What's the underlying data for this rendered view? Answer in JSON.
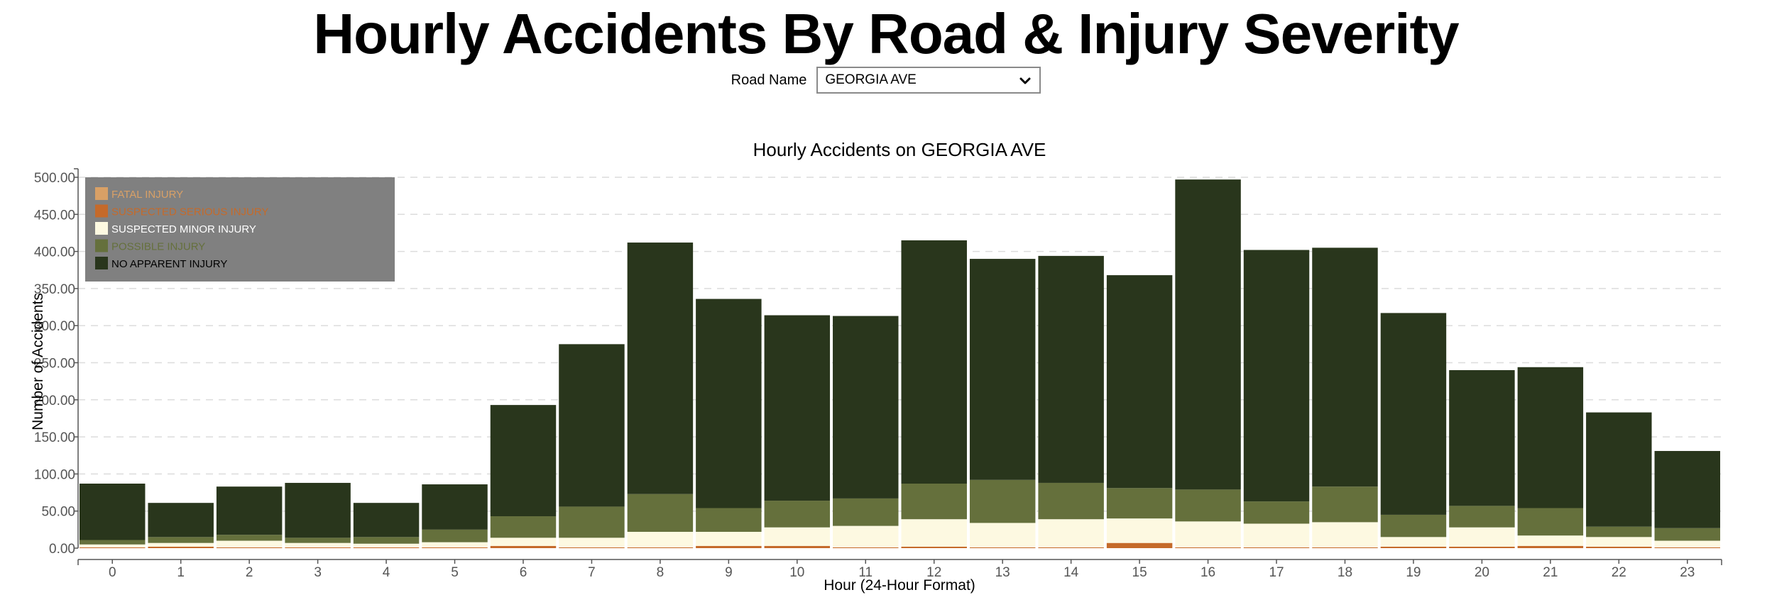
{
  "page": {
    "title": "Hourly Accidents By Road & Injury Severity",
    "road_label": "Road Name",
    "road_selected": "GEORGIA AVE"
  },
  "chart_data": {
    "type": "bar",
    "stacked": true,
    "title": "Hourly Accidents on GEORGIA AVE",
    "xlabel": "Hour (24-Hour Format)",
    "ylabel": "Number of Accidents",
    "ylim": [
      0,
      500
    ],
    "yticks": [
      "0.00",
      "50.00",
      "100.00",
      "150.00",
      "200.00",
      "250.00",
      "300.00",
      "350.00",
      "400.00",
      "450.00",
      "500.00"
    ],
    "grid": true,
    "legend_position": "top-left",
    "categories": [
      "0",
      "1",
      "2",
      "3",
      "4",
      "5",
      "6",
      "7",
      "8",
      "9",
      "10",
      "11",
      "12",
      "13",
      "14",
      "15",
      "16",
      "17",
      "18",
      "19",
      "20",
      "21",
      "22",
      "23"
    ],
    "series": [
      {
        "name": "FATAL INJURY",
        "color": "#d9a066",
        "values": [
          0,
          0,
          0,
          0,
          0,
          0,
          0,
          0,
          0,
          0,
          0,
          0,
          0,
          0,
          0,
          0,
          0,
          0,
          0,
          0,
          0,
          0,
          0,
          0
        ]
      },
      {
        "name": "SUSPECTED SERIOUS INJURY",
        "color": "#c56a2a",
        "values": [
          1,
          2,
          1,
          1,
          1,
          1,
          3,
          1,
          1,
          3,
          3,
          1,
          2,
          1,
          1,
          7,
          1,
          1,
          1,
          2,
          2,
          3,
          2,
          1
        ]
      },
      {
        "name": "SUSPECTED MINOR INJURY",
        "color": "#fdf9e1",
        "values": [
          4,
          5,
          9,
          6,
          5,
          7,
          11,
          13,
          21,
          19,
          25,
          29,
          37,
          33,
          38,
          33,
          35,
          32,
          34,
          13,
          26,
          14,
          13,
          9
        ]
      },
      {
        "name": "POSSIBLE INJURY",
        "color": "#65703c",
        "values": [
          6,
          8,
          8,
          7,
          9,
          17,
          29,
          42,
          51,
          32,
          36,
          37,
          48,
          58,
          49,
          41,
          43,
          30,
          48,
          30,
          29,
          37,
          14,
          17
        ]
      },
      {
        "name": "NO APPARENT INJURY",
        "color": "#29361c",
        "values": [
          76,
          46,
          65,
          74,
          46,
          61,
          150,
          219,
          339,
          282,
          250,
          246,
          328,
          298,
          306,
          287,
          418,
          339,
          322,
          272,
          183,
          190,
          154,
          104
        ]
      }
    ],
    "legend_box_color": "#808080"
  }
}
